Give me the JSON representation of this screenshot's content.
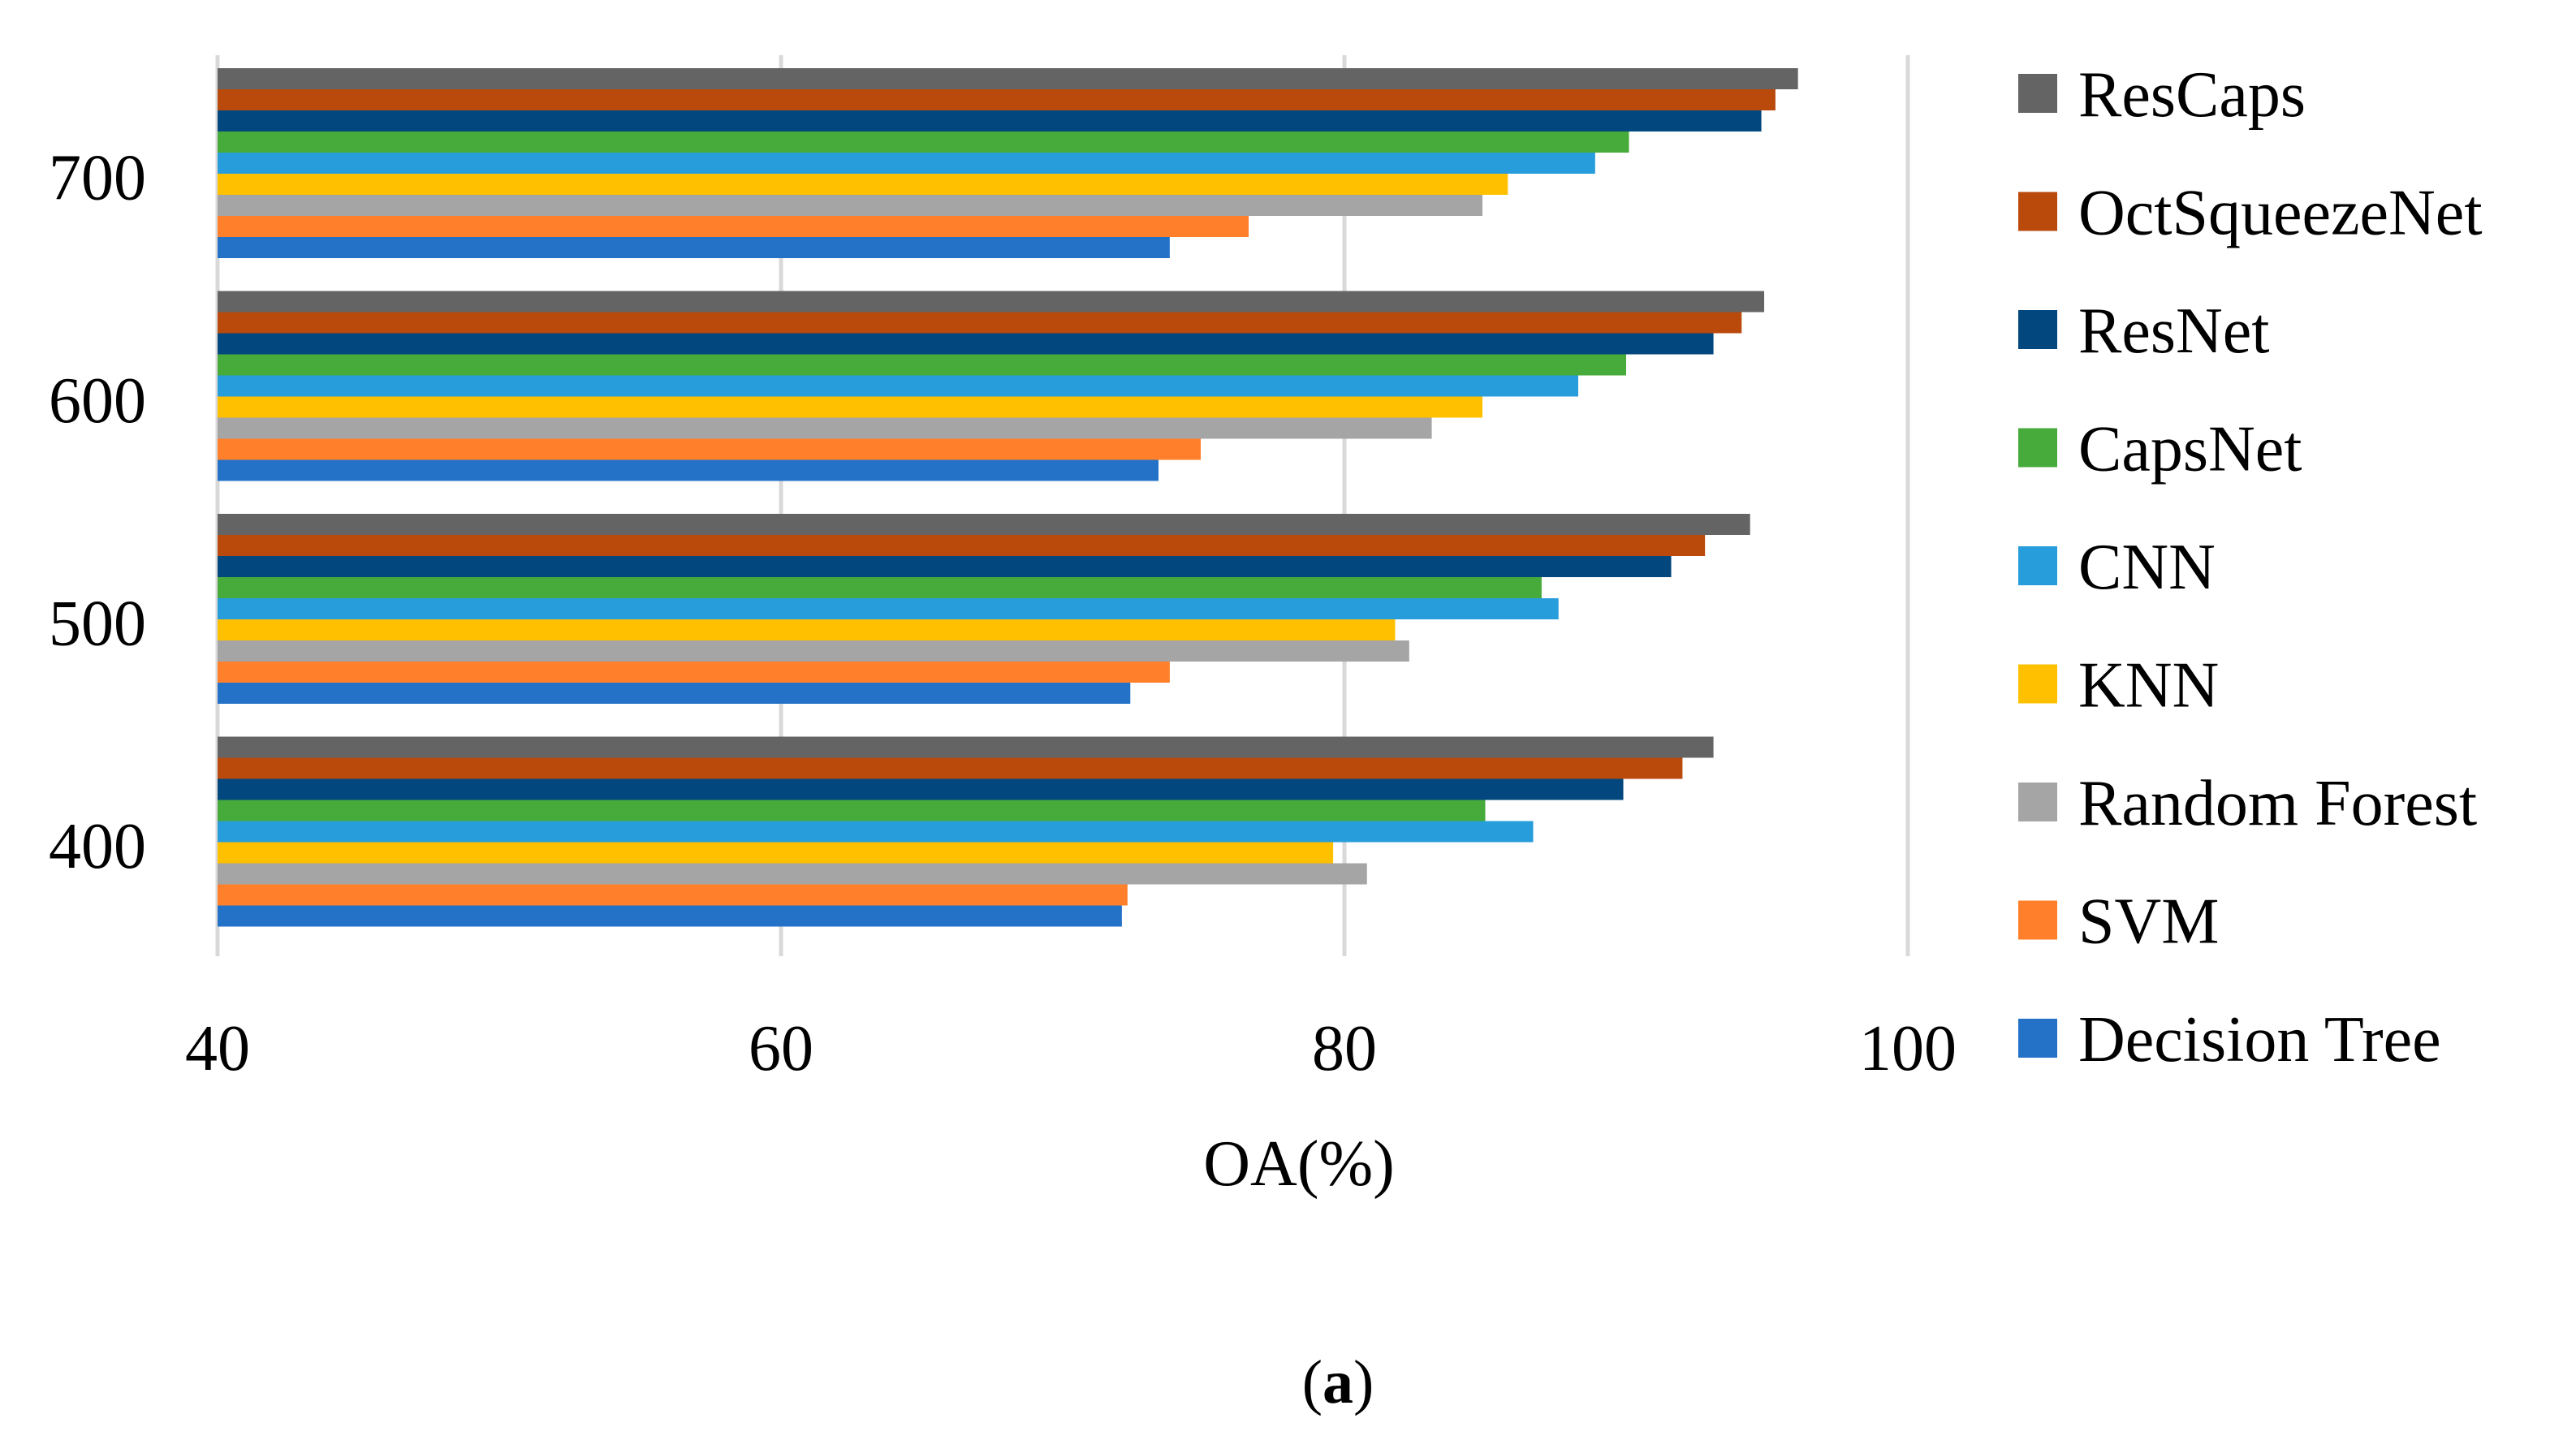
{
  "chart_data": {
    "type": "bar",
    "orientation": "horizontal",
    "title": "",
    "xlabel": "OA(%)",
    "ylabel": "",
    "xlim": [
      40,
      100
    ],
    "xticks": [
      "40",
      "60",
      "80",
      "100"
    ],
    "categories": [
      "400",
      "500",
      "600",
      "700"
    ],
    "grid": "vertical",
    "legend_position": "right",
    "series": [
      {
        "name": "Decision Tree",
        "color": "#2472C8",
        "values": [
          72.1,
          72.4,
          73.4,
          73.8
        ]
      },
      {
        "name": "SVM",
        "color": "#FF7F2A",
        "values": [
          72.3,
          73.8,
          74.9,
          76.6
        ]
      },
      {
        "name": "Random Forest",
        "color": "#A5A5A5",
        "values": [
          80.8,
          82.3,
          83.1,
          84.9
        ]
      },
      {
        "name": "KNN",
        "color": "#FFC000",
        "values": [
          79.6,
          81.8,
          84.9,
          85.8
        ]
      },
      {
        "name": "CNN",
        "color": "#279DDB",
        "values": [
          86.7,
          87.6,
          88.3,
          88.9
        ]
      },
      {
        "name": "CapsNet",
        "color": "#46AB3A",
        "values": [
          85.0,
          87.0,
          90.0,
          90.1
        ]
      },
      {
        "name": "ResNet",
        "color": "#02477D",
        "values": [
          89.9,
          91.6,
          93.1,
          94.8
        ]
      },
      {
        "name": "OctSqueezeNet",
        "color": "#B94A0C",
        "values": [
          92.0,
          92.8,
          94.1,
          95.3
        ]
      },
      {
        "name": "ResCaps",
        "color": "#646464",
        "values": [
          93.1,
          94.4,
          94.9,
          96.1
        ]
      }
    ]
  },
  "caption": {
    "open": "(",
    "letter": "a",
    "close": ")"
  }
}
